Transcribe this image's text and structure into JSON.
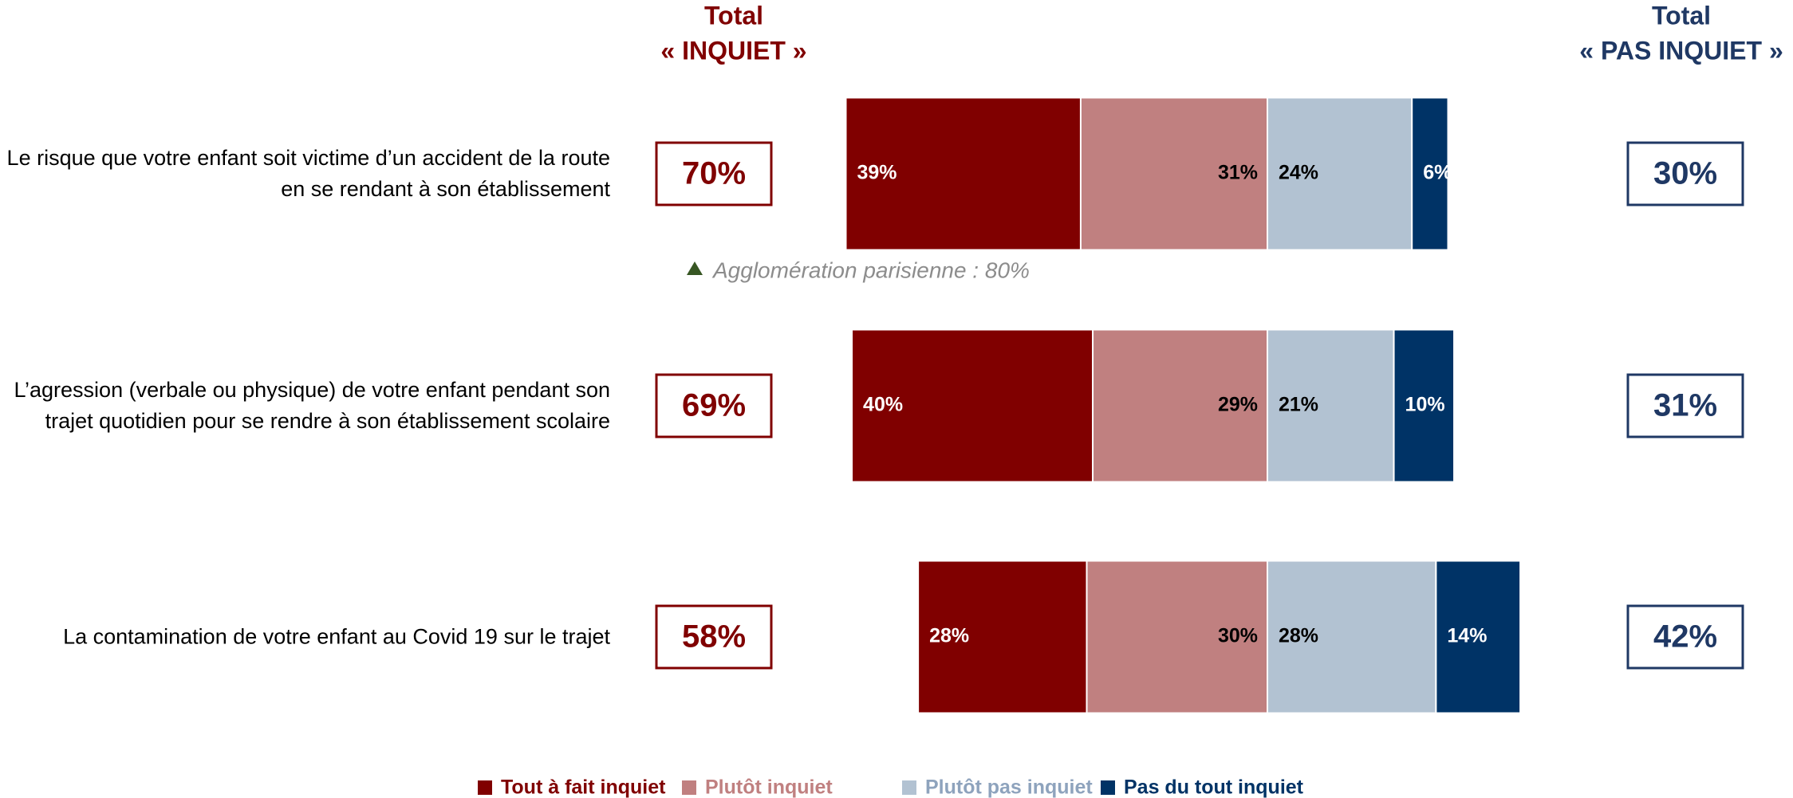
{
  "chart_data": {
    "type": "diverging_bar",
    "categories": [
      "Le risque que votre enfant soit victime d’un accident de la route en se rendant à son établissement",
      "L’agression (verbale ou physique) de votre enfant pendant son trajet quotidien pour se rendre à son établissement scolaire",
      "La contamination de votre enfant au Covid 19 sur le trajet"
    ],
    "series": [
      {
        "name": "Tout à fait inquiet",
        "color": "#800000",
        "values": [
          39,
          40,
          28
        ],
        "value_labels": [
          "39%",
          "40%",
          "28%"
        ]
      },
      {
        "name": "Plutôt inquiet",
        "color": "#c08080",
        "values": [
          31,
          29,
          30
        ],
        "value_labels": [
          "31%",
          "29%",
          "30%"
        ]
      },
      {
        "name": "Plutôt pas inquiet",
        "color": "#b2c2d2",
        "values": [
          24,
          21,
          28
        ],
        "value_labels": [
          "24%",
          "21%",
          "28%"
        ]
      },
      {
        "name": "Pas du tout inquiet",
        "color": "#003366",
        "values": [
          6,
          10,
          14
        ],
        "value_labels": [
          "6%",
          "10%",
          "14%"
        ]
      }
    ],
    "totals_left": {
      "title": "Total",
      "subtitle": "« INQUIET »",
      "color": "#800000",
      "values": [
        70,
        69,
        58
      ],
      "value_labels": [
        "70%",
        "69%",
        "58%"
      ]
    },
    "totals_right": {
      "title": "Total",
      "subtitle": "« PAS INQUIET »",
      "color": "#1f3864",
      "values": [
        30,
        31,
        42
      ],
      "value_labels": [
        "30%",
        "31%",
        "42%"
      ]
    },
    "annotation": "Agglomération parisienne : 80%"
  }
}
